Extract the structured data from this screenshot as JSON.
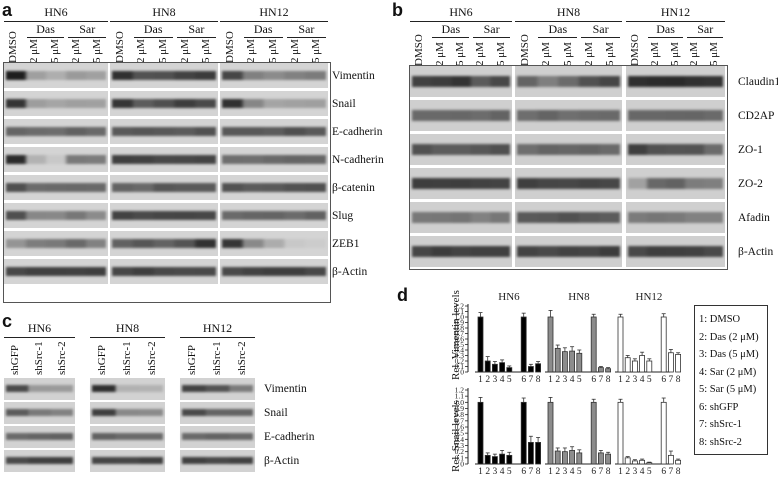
{
  "panels": [
    "a",
    "b",
    "c",
    "d"
  ],
  "cell_lines": [
    "HN6",
    "HN8",
    "HN12"
  ],
  "treatments": [
    "Das",
    "Sar"
  ],
  "lane_labels_drug": [
    "DMSO",
    "2 μM",
    "5 μM",
    "2 μM",
    "5 μM"
  ],
  "lane_labels_src": [
    "shGFP",
    "shSrc-1",
    "shSrc-2"
  ],
  "panel_a_proteins": [
    "Vimentin",
    "Snail",
    "E-cadherin",
    "N-cadherin",
    "β-catenin",
    "Slug",
    "ZEB1",
    "β-Actin"
  ],
  "panel_b_proteins": [
    "Claudin1",
    "CD2AP",
    "ZO-1",
    "ZO-2",
    "Afadin",
    "β-Actin"
  ],
  "panel_c_proteins": [
    "Vimentin",
    "Snail",
    "E-cadherin",
    "β-Actin"
  ],
  "chart_data": [
    {
      "type": "bar",
      "ylabel": "Rel. Vimentin levels",
      "groups": [
        "HN6",
        "HN8",
        "HN12"
      ],
      "ylim": [
        0,
        1.2
      ],
      "yticks": [
        "0",
        "0.1",
        "0.2",
        "0.3",
        "0.4",
        "0.5",
        "0.6",
        "0.7",
        "0.8",
        "0.9",
        "1.0",
        "1.1",
        "1.2"
      ],
      "x": [
        "1",
        "2",
        "3",
        "4",
        "5",
        "6",
        "7",
        "8"
      ],
      "series": [
        {
          "name": "HN6",
          "values": [
            1.0,
            0.2,
            0.14,
            0.17,
            0.08,
            1.0,
            0.1,
            0.15
          ],
          "errors": [
            0.08,
            0.08,
            0.05,
            0.05,
            0.03,
            0.07,
            0.04,
            0.04
          ]
        },
        {
          "name": "HN8",
          "values": [
            1.0,
            0.43,
            0.37,
            0.38,
            0.34,
            1.0,
            0.08,
            0.06
          ],
          "errors": [
            0.12,
            0.06,
            0.07,
            0.08,
            0.06,
            0.05,
            0.02,
            0.02
          ]
        },
        {
          "name": "HN12",
          "values": [
            1.0,
            0.26,
            0.2,
            0.3,
            0.2,
            1.0,
            0.35,
            0.32
          ],
          "errors": [
            0.05,
            0.04,
            0.04,
            0.06,
            0.04,
            0.06,
            0.06,
            0.03
          ]
        }
      ]
    },
    {
      "type": "bar",
      "ylabel": "Rel. Snail levels",
      "groups": [
        "HN6",
        "HN8",
        "HN12"
      ],
      "ylim": [
        0,
        1.2
      ],
      "yticks": [
        "0",
        "0.1",
        "0.2",
        "0.3",
        "0.4",
        "0.5",
        "0.6",
        "0.7",
        "0.8",
        "0.9",
        "1.0",
        "1.1",
        "1.2"
      ],
      "x": [
        "1",
        "2",
        "3",
        "4",
        "5",
        "6",
        "7",
        "8"
      ],
      "series": [
        {
          "name": "HN6",
          "values": [
            1.0,
            0.14,
            0.12,
            0.16,
            0.14,
            1.0,
            0.35,
            0.35
          ],
          "errors": [
            0.08,
            0.04,
            0.04,
            0.06,
            0.05,
            0.07,
            0.1,
            0.08
          ]
        },
        {
          "name": "HN8",
          "values": [
            1.0,
            0.21,
            0.2,
            0.22,
            0.18,
            1.0,
            0.18,
            0.16
          ],
          "errors": [
            0.08,
            0.05,
            0.06,
            0.06,
            0.05,
            0.05,
            0.04,
            0.03
          ]
        },
        {
          "name": "HN12",
          "values": [
            1.0,
            0.1,
            0.05,
            0.06,
            0.02,
            1.0,
            0.14,
            0.06
          ],
          "errors": [
            0.05,
            0.02,
            0.02,
            0.02,
            0.01,
            0.07,
            0.07,
            0.02
          ]
        }
      ]
    }
  ],
  "legend": [
    "1: DMSO",
    "2: Das (2 μM)",
    "3: Das (5 μM)",
    "4: Sar (2 μM)",
    "5: Sar (5 μM)",
    "6: shGFP",
    "7: shSrc-1",
    "8: shSrc-2"
  ],
  "colors": {
    "HN6": "#000000",
    "HN8": "#8c8c8c",
    "HN12": "#ffffff"
  }
}
